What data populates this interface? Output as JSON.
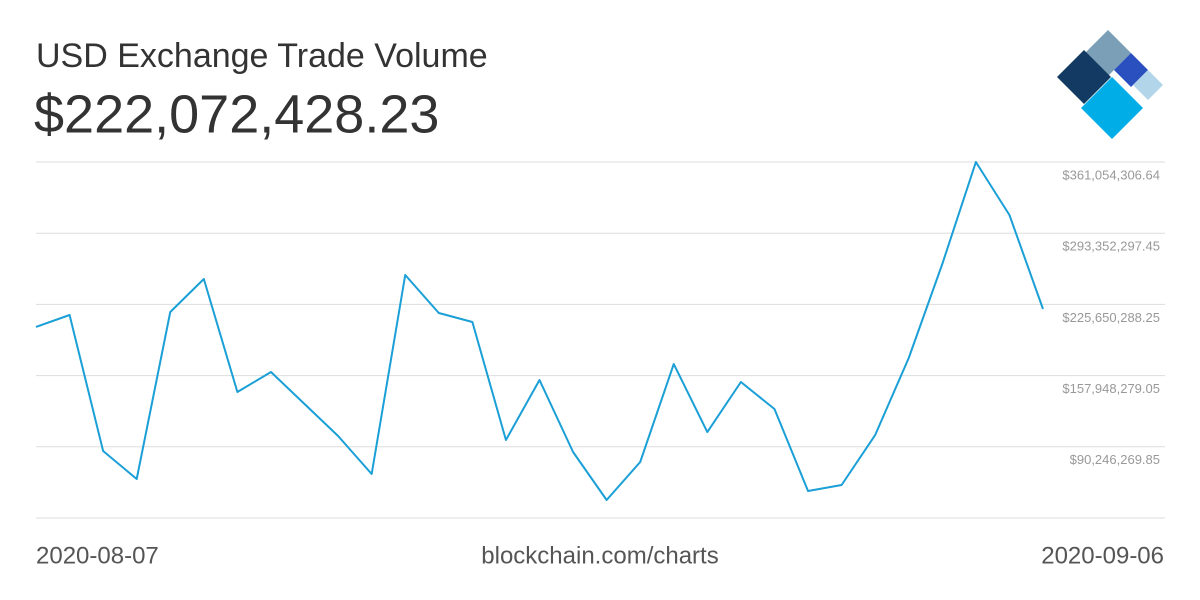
{
  "chart_data": {
    "type": "line",
    "title": "USD Exchange Trade Volume",
    "subtitle": "$222,072,428.23",
    "source": "blockchain.com/charts",
    "x": [
      "2020-08-07",
      null,
      null,
      null,
      null,
      null,
      null,
      null,
      null,
      null,
      null,
      null,
      null,
      null,
      null,
      null,
      null,
      null,
      null,
      null,
      null,
      null,
      null,
      null,
      null,
      null,
      null,
      null,
      null,
      null,
      "2020-09-06"
    ],
    "series": [
      {
        "color": "#1a9fd6",
        "values": [
          204170000,
          215570000,
          86250000,
          59630000,
          218420000,
          249800000,
          142350000,
          161370000,
          130940000,
          100510000,
          64380000,
          253600000,
          217470000,
          208910000,
          96710000,
          153760000,
          85300000,
          39660000,
          75790000,
          168970000,
          104310000,
          151860000,
          126180000,
          48210000,
          53920000,
          101460000,
          174680000,
          264060000,
          361050000,
          310650000,
          221270000
        ]
      }
    ],
    "ylim": [
      22544260.66,
      361054306.64
    ],
    "yticks": [
      {
        "value": 361054306.64,
        "label": "$361,054,306.64"
      },
      {
        "value": 293352297.45,
        "label": "$293,352,297.45"
      },
      {
        "value": 225650288.25,
        "label": "$225,650,288.25"
      },
      {
        "value": 157948279.05,
        "label": "$157,948,279.05"
      },
      {
        "value": 90246269.85,
        "label": "$90,246,269.85"
      }
    ],
    "grid": true
  }
}
